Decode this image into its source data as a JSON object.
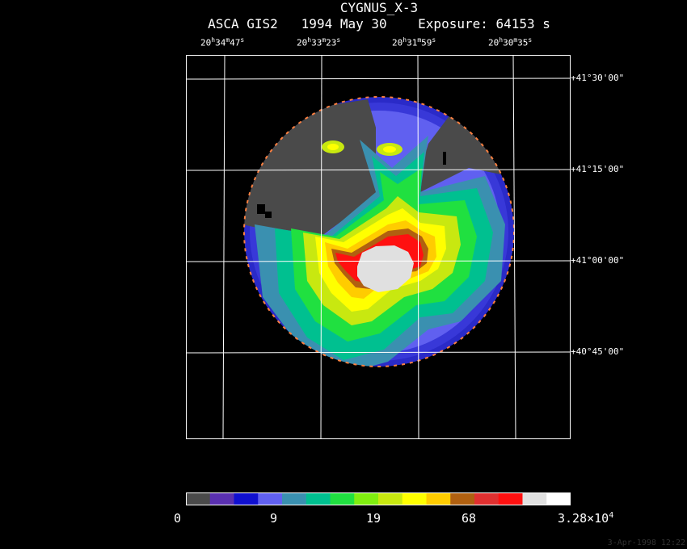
{
  "header": {
    "object": "CYGNUS_X-3",
    "info": "ASCA GIS2   1994 May 30    Exposure: 64153 s"
  },
  "ra_labels": [
    {
      "h": "20",
      "m": "34",
      "s": "47"
    },
    {
      "h": "20",
      "m": "33",
      "s": "23"
    },
    {
      "h": "20",
      "m": "31",
      "s": "59"
    },
    {
      "h": "20",
      "m": "30",
      "s": "35"
    }
  ],
  "dec_labels": [
    "+41°30'00\"",
    "+41°15'00\"",
    "+41°00'00\"",
    "+40°45'00\""
  ],
  "colorbar": {
    "colors": [
      "#4a4a4a",
      "#5a30b0",
      "#1010d0",
      "#6060f0",
      "#3a90b0",
      "#00c090",
      "#20e040",
      "#80ee10",
      "#c8e810",
      "#ffff00",
      "#ffcc00",
      "#b06010",
      "#e03030",
      "#ff1010",
      "#e0e0e0",
      "#ffffff"
    ],
    "ticks": [
      "0",
      "9",
      "19",
      "68"
    ],
    "max_mantissa": "3.28×10",
    "max_exponent": "4"
  },
  "timestamp": "3-Apr-1998 12:22"
}
